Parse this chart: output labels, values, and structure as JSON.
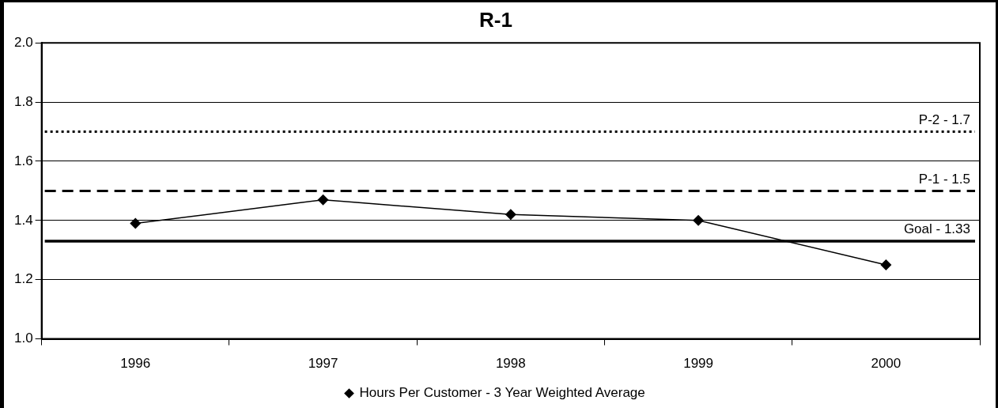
{
  "chart_data": {
    "type": "line",
    "title": "R-1",
    "categories": [
      "1996",
      "1997",
      "1998",
      "1999",
      "2000"
    ],
    "series": [
      {
        "name": "Hours Per Customer - 3 Year Weighted Average",
        "color": "#000000",
        "values": [
          1.39,
          1.47,
          1.42,
          1.4,
          1.25
        ]
      }
    ],
    "ylim": [
      1.0,
      2.0
    ],
    "yticks": [
      {
        "value": 1.0,
        "label": "1.0"
      },
      {
        "value": 1.2,
        "label": "1.2"
      },
      {
        "value": 1.4,
        "label": "1.4"
      },
      {
        "value": 1.6,
        "label": "1.6"
      },
      {
        "value": 1.8,
        "label": "1.8"
      },
      {
        "value": 2.0,
        "label": "2.0"
      }
    ],
    "ref_lines": [
      {
        "axis": "y",
        "value": 1.7,
        "label": "P-2 - 1.7",
        "color": "#000000",
        "line_style": "dotted"
      },
      {
        "axis": "y",
        "value": 1.5,
        "label": "P-1 - 1.5",
        "color": "#000000",
        "line_style": "dashed"
      },
      {
        "axis": "y",
        "value": 1.33,
        "label": "Goal - 1.33",
        "color": "#000000",
        "line_style": "solid"
      }
    ],
    "grid": "y",
    "legend": "bottom",
    "marker": "diamond",
    "line_style": "solid"
  }
}
